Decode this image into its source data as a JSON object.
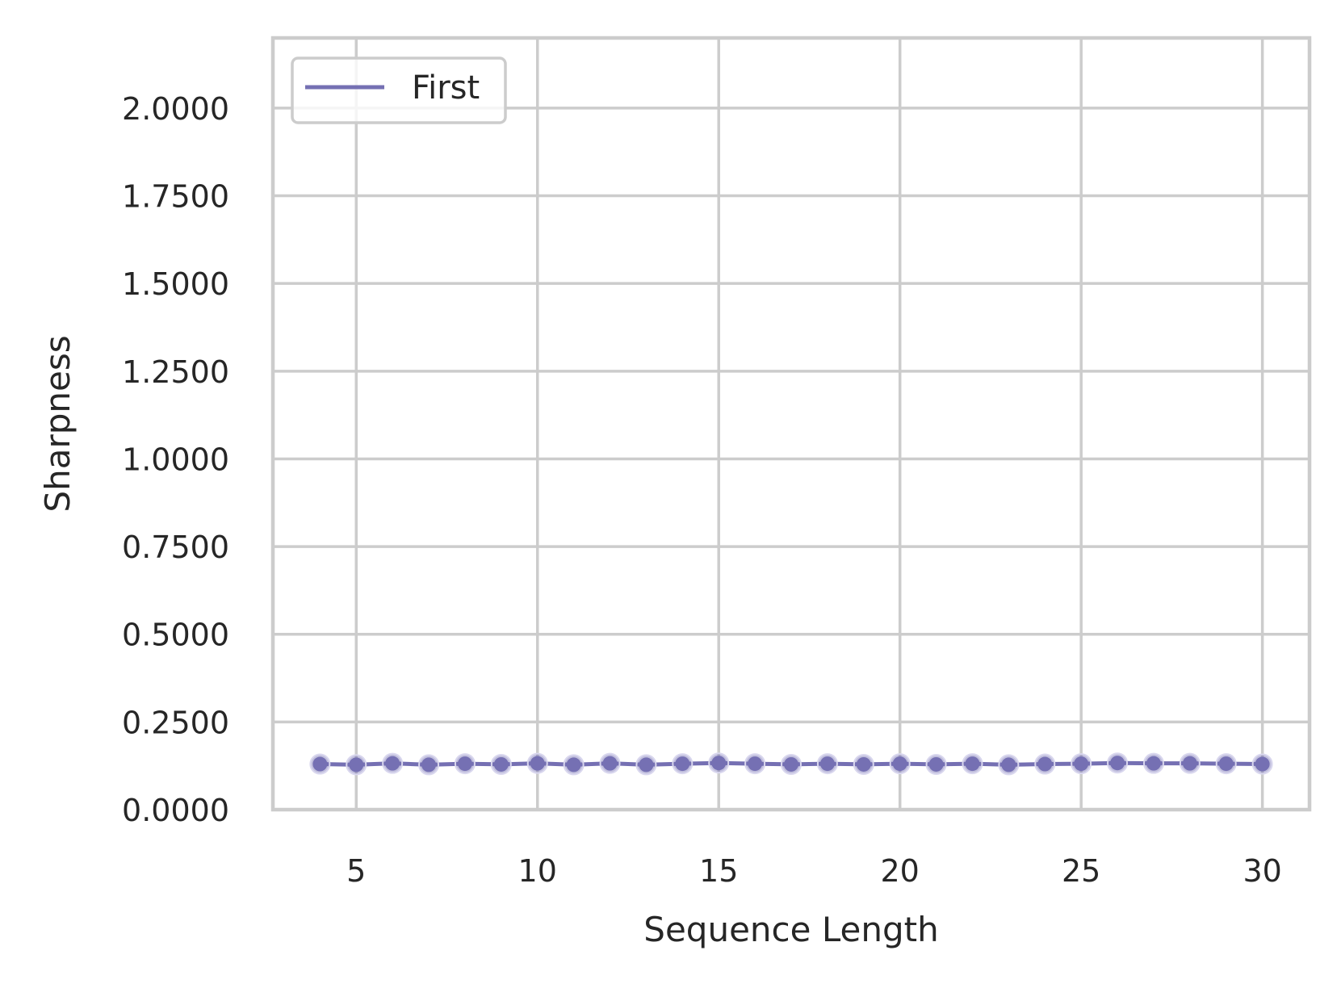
{
  "chart_data": {
    "type": "line",
    "title": "",
    "xlabel": "Sequence Length",
    "ylabel": "Sharpness",
    "xlim": [
      2.7,
      31.3
    ],
    "ylim": [
      0,
      2.2
    ],
    "x_ticks": [
      5,
      10,
      15,
      20,
      25,
      30
    ],
    "x_tick_labels": [
      "5",
      "10",
      "15",
      "20",
      "25",
      "30"
    ],
    "y_ticks": [
      0,
      0.25,
      0.5,
      0.75,
      1.0,
      1.25,
      1.5,
      1.75,
      2.0
    ],
    "y_tick_labels": [
      "0.0000",
      "0.2500",
      "0.5000",
      "0.7500",
      "1.0000",
      "1.2500",
      "1.5000",
      "1.7500",
      "2.0000"
    ],
    "grid": true,
    "legend_position": "top-left",
    "series": [
      {
        "name": "First",
        "color": "#7570b3",
        "markers": true,
        "x": [
          4,
          5,
          6,
          7,
          8,
          9,
          10,
          11,
          12,
          13,
          14,
          15,
          16,
          17,
          18,
          19,
          20,
          21,
          22,
          23,
          24,
          25,
          26,
          27,
          28,
          29,
          30
        ],
        "y": [
          0.13,
          0.128,
          0.132,
          0.128,
          0.131,
          0.129,
          0.132,
          0.128,
          0.132,
          0.128,
          0.131,
          0.133,
          0.131,
          0.129,
          0.131,
          0.129,
          0.131,
          0.129,
          0.131,
          0.128,
          0.13,
          0.131,
          0.133,
          0.132,
          0.132,
          0.131,
          0.13
        ]
      }
    ]
  }
}
